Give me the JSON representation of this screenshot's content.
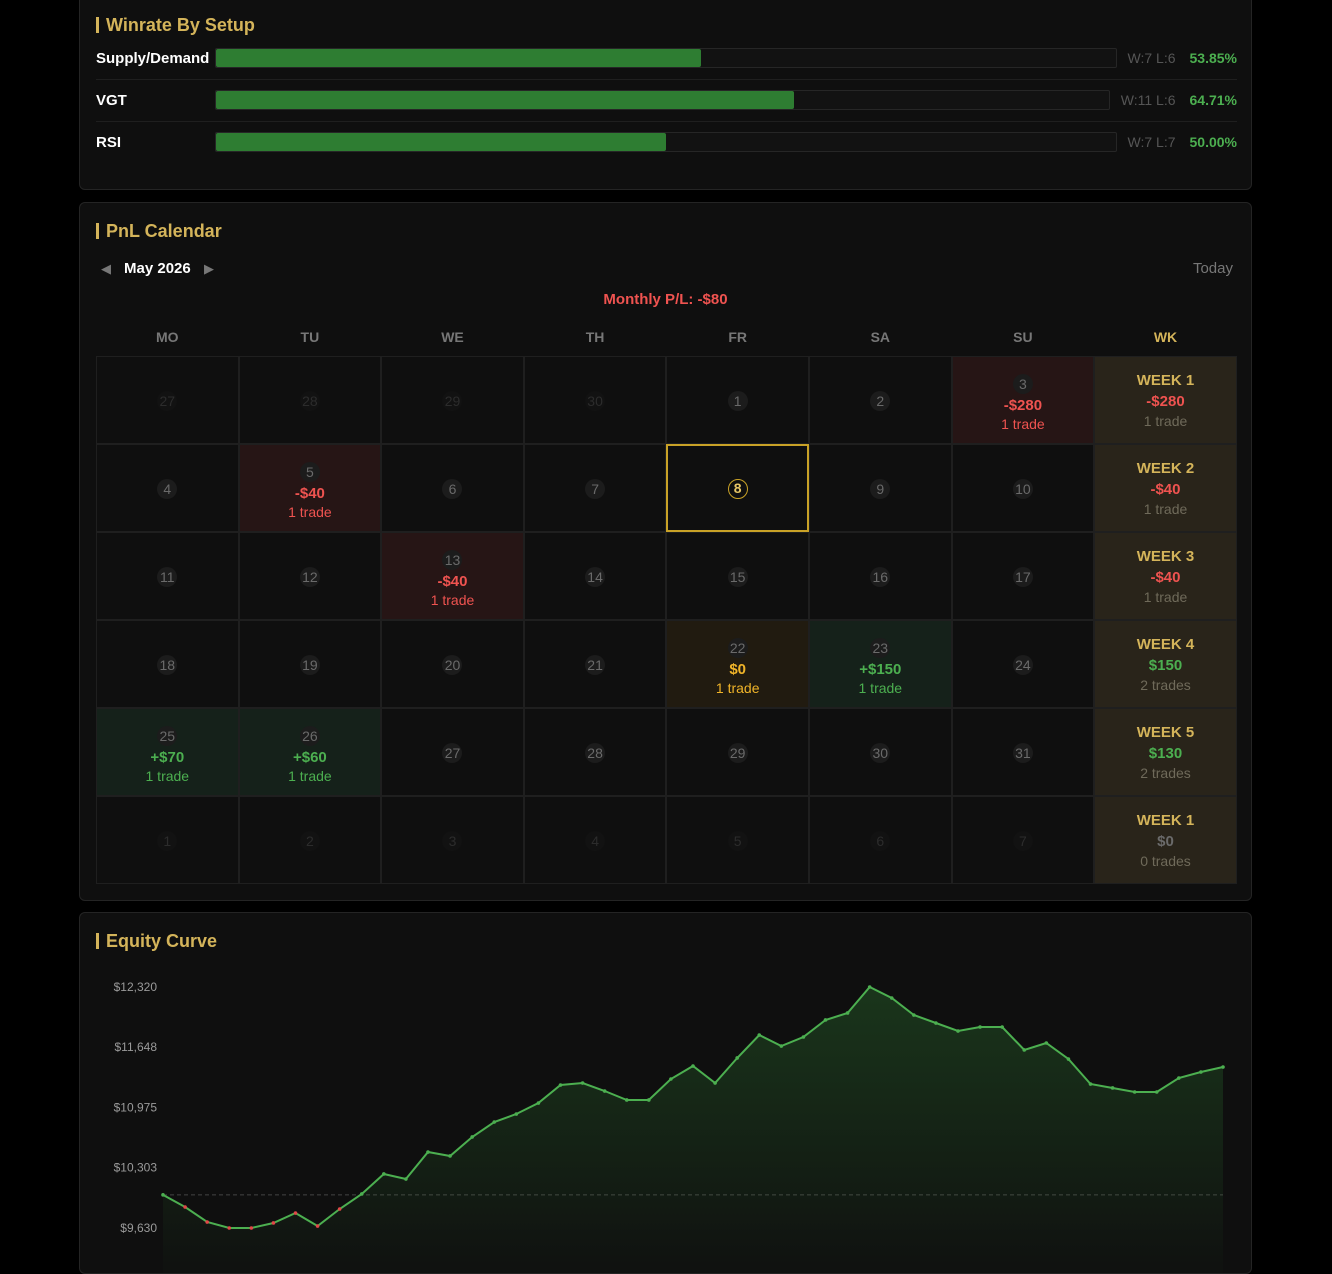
{
  "winrate": {
    "title": "Winrate By Setup",
    "rows": [
      {
        "name": "Supply/Demand",
        "record": "W:7 L:6",
        "rate": 53.85,
        "rate_label": "53.85%"
      },
      {
        "name": "VGT",
        "record": "W:11 L:6",
        "rate": 64.71,
        "rate_label": "64.71%"
      },
      {
        "name": "RSI",
        "record": "W:7 L:7",
        "rate": 50.0,
        "rate_label": "50.00%"
      }
    ]
  },
  "calendar": {
    "title": "PnL Calendar",
    "month": "May 2026",
    "today_button": "Today",
    "monthly_pl": "Monthly P/L: -$80",
    "monthly_result": "loss",
    "weekdays": [
      "MO",
      "TU",
      "WE",
      "TH",
      "FR",
      "SA",
      "SU"
    ],
    "week_header": "WK",
    "weeks": [
      {
        "days": [
          {
            "day": 27,
            "outside": true
          },
          {
            "day": 28,
            "outside": true
          },
          {
            "day": 29,
            "outside": true
          },
          {
            "day": 30,
            "outside": true
          },
          {
            "day": 1
          },
          {
            "day": 2
          },
          {
            "day": 3,
            "pnl": "-$280",
            "trades": "1 trade",
            "result": "loss"
          }
        ],
        "summary": {
          "label": "WEEK 1",
          "pnl": "-$280",
          "trades": "1 trade",
          "result": "loss"
        }
      },
      {
        "days": [
          {
            "day": 4
          },
          {
            "day": 5,
            "pnl": "-$40",
            "trades": "1 trade",
            "result": "loss"
          },
          {
            "day": 6
          },
          {
            "day": 7
          },
          {
            "day": 8,
            "today": true
          },
          {
            "day": 9
          },
          {
            "day": 10
          }
        ],
        "summary": {
          "label": "WEEK 2",
          "pnl": "-$40",
          "trades": "1 trade",
          "result": "loss"
        }
      },
      {
        "days": [
          {
            "day": 11
          },
          {
            "day": 12
          },
          {
            "day": 13,
            "pnl": "-$40",
            "trades": "1 trade",
            "result": "loss"
          },
          {
            "day": 14
          },
          {
            "day": 15
          },
          {
            "day": 16
          },
          {
            "day": 17
          }
        ],
        "summary": {
          "label": "WEEK 3",
          "pnl": "-$40",
          "trades": "1 trade",
          "result": "loss"
        }
      },
      {
        "days": [
          {
            "day": 18
          },
          {
            "day": 19
          },
          {
            "day": 20
          },
          {
            "day": 21
          },
          {
            "day": 22,
            "pnl": "$0",
            "trades": "1 trade",
            "result": "even"
          },
          {
            "day": 23,
            "pnl": "+$150",
            "trades": "1 trade",
            "result": "win"
          },
          {
            "day": 24
          }
        ],
        "summary": {
          "label": "WEEK 4",
          "pnl": "$150",
          "trades": "2 trades",
          "result": "win"
        }
      },
      {
        "days": [
          {
            "day": 25,
            "pnl": "+$70",
            "trades": "1 trade",
            "result": "win"
          },
          {
            "day": 26,
            "pnl": "+$60",
            "trades": "1 trade",
            "result": "win"
          },
          {
            "day": 27
          },
          {
            "day": 28
          },
          {
            "day": 29
          },
          {
            "day": 30
          },
          {
            "day": 31
          }
        ],
        "summary": {
          "label": "WEEK 5",
          "pnl": "$130",
          "trades": "2 trades",
          "result": "win"
        }
      },
      {
        "days": [
          {
            "day": 1,
            "outside": true
          },
          {
            "day": 2,
            "outside": true
          },
          {
            "day": 3,
            "outside": true
          },
          {
            "day": 4,
            "outside": true
          },
          {
            "day": 5,
            "outside": true
          },
          {
            "day": 6,
            "outside": true
          },
          {
            "day": 7,
            "outside": true
          }
        ],
        "summary": {
          "label": "WEEK 1",
          "pnl": "$0",
          "trades": "0 trades",
          "result": "none"
        }
      }
    ]
  },
  "chart_data": {
    "type": "line",
    "title": "Equity Curve",
    "color": "#4caf50",
    "loss_color": "#e04848",
    "baseline": 10000,
    "values": [
      10000,
      9864,
      9697,
      9630,
      9630,
      9686,
      9797,
      9652,
      9842,
      10010,
      10233,
      10177,
      10478,
      10434,
      10646,
      10813,
      10902,
      11025,
      11226,
      11248,
      11159,
      11059,
      11059,
      11293,
      11438,
      11248,
      11528,
      11784,
      11661,
      11762,
      11952,
      12030,
      12320,
      12197,
      12007,
      11918,
      11829,
      11873,
      11873,
      11617,
      11695,
      11516,
      11237,
      11193,
      11148,
      11148,
      11304,
      11371,
      11427
    ],
    "ylim": [
      9630,
      12320
    ],
    "yticks": [
      {
        "value": 9630,
        "label": "$9,630"
      },
      {
        "value": 10303,
        "label": "$10,303"
      },
      {
        "value": 10975,
        "label": "$10,975"
      },
      {
        "value": 11648,
        "label": "$11,648"
      },
      {
        "value": 12320,
        "label": "$12,320"
      }
    ]
  }
}
